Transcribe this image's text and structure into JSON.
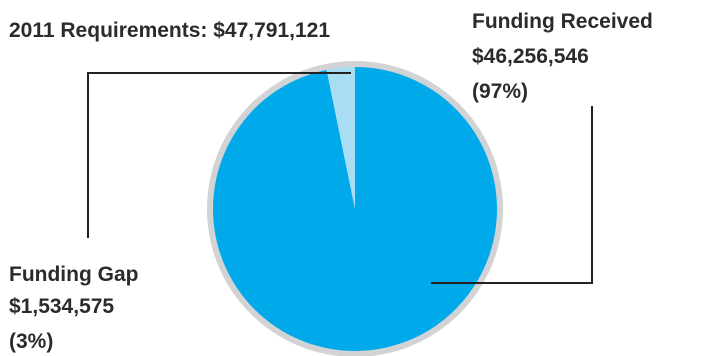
{
  "chart_data": {
    "type": "pie",
    "title": "2011 Requirements: $47,791,121",
    "slices": [
      {
        "label": "Funding Received",
        "value": 46256546,
        "value_text": "$46,256,546",
        "percent_text": "(97%)"
      },
      {
        "label": "Funding Gap",
        "value": 1534575,
        "value_text": "$1,534,575",
        "percent_text": "(3%)"
      }
    ],
    "colors": {
      "received": "#00a9ea",
      "gap": "#a9ddf3",
      "rim": "#d2d3d5",
      "leader": "#222222"
    },
    "legend": "none"
  }
}
